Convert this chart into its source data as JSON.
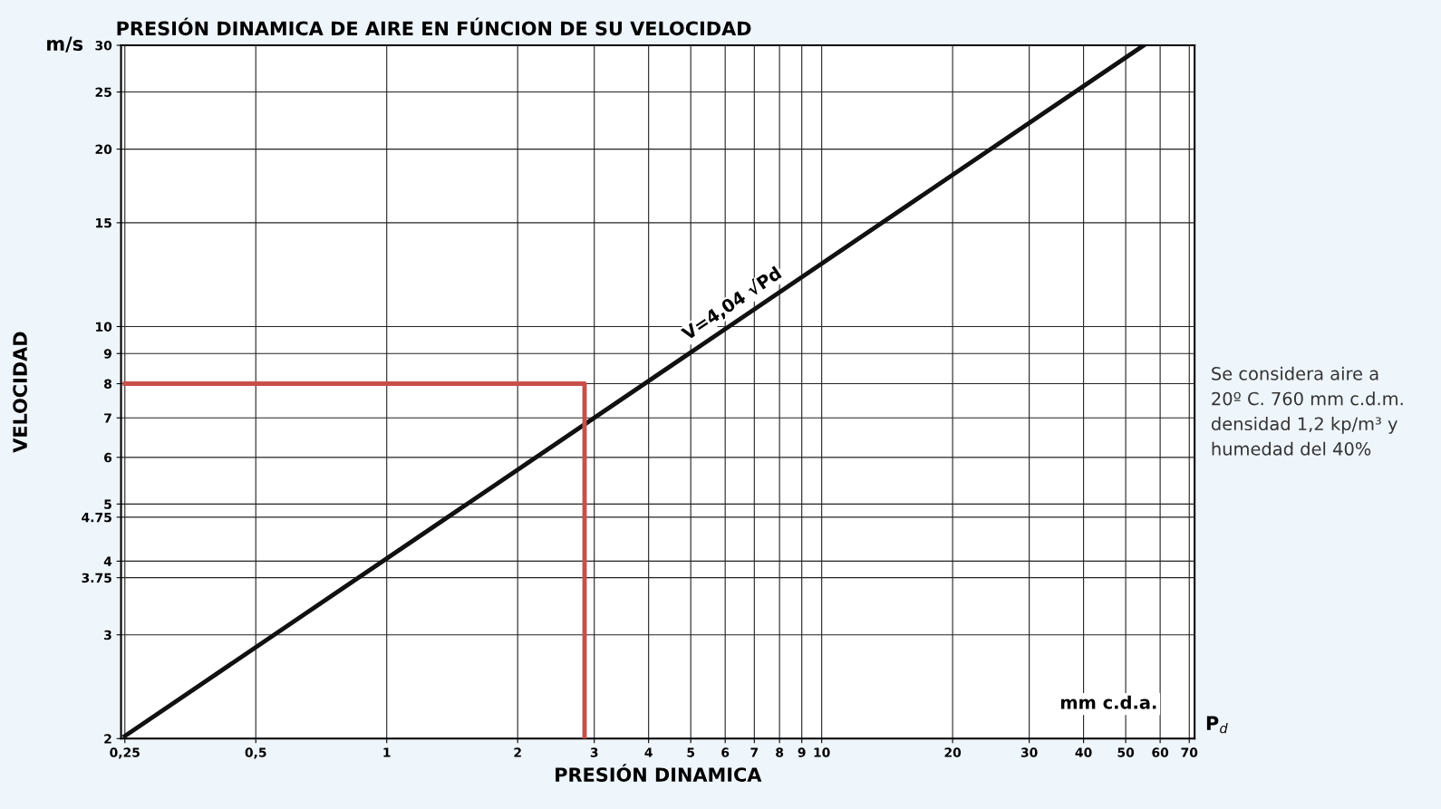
{
  "chart_data": {
    "type": "line",
    "title": "PRESIÓN DINAMICA DE AIRE EN FÚNCION DE SU VELOCIDAD",
    "xlabel": "PRESIÓN DINAMICA",
    "ylabel": "VELOCIDAD",
    "log": "xy",
    "grid": true,
    "legend": false,
    "marker": "none",
    "line_style": "solid",
    "xlim": [
      0.245,
      72
    ],
    "ylim": [
      2,
      30
    ],
    "xticks": [
      {
        "value": 0.25,
        "label": "0,25"
      },
      {
        "value": 0.5,
        "label": "0,5"
      },
      1,
      2,
      3,
      4,
      5,
      6,
      7,
      8,
      9,
      10,
      20,
      30,
      40,
      50,
      60,
      70
    ],
    "yticks": [
      2,
      3,
      {
        "value": 3.75,
        "label": "3.75"
      },
      4,
      {
        "value": 4.75,
        "label": "4.75"
      },
      5,
      6,
      7,
      8,
      9,
      10,
      15,
      20,
      25,
      30
    ],
    "series": [
      {
        "x": [
          0.25,
          55
        ],
        "values": [
          2.02,
          30
        ],
        "color": "#111111"
      },
      {
        "x": [
          0.25,
          2.85,
          2.85
        ],
        "values": [
          8,
          8,
          2
        ],
        "color": "#c8504a"
      }
    ],
    "annotations": [
      {
        "text": "V=4,04 √Pd",
        "x": 6.4,
        "y": 10.2
      },
      "m/s",
      "mm c.d.a.",
      "P$_{d}$",
      "Se considera aire a\n20º C. 760 mm c.d.m.\ndensidad 1,2 kp/m³ y\nhumedad del 40%"
    ]
  }
}
